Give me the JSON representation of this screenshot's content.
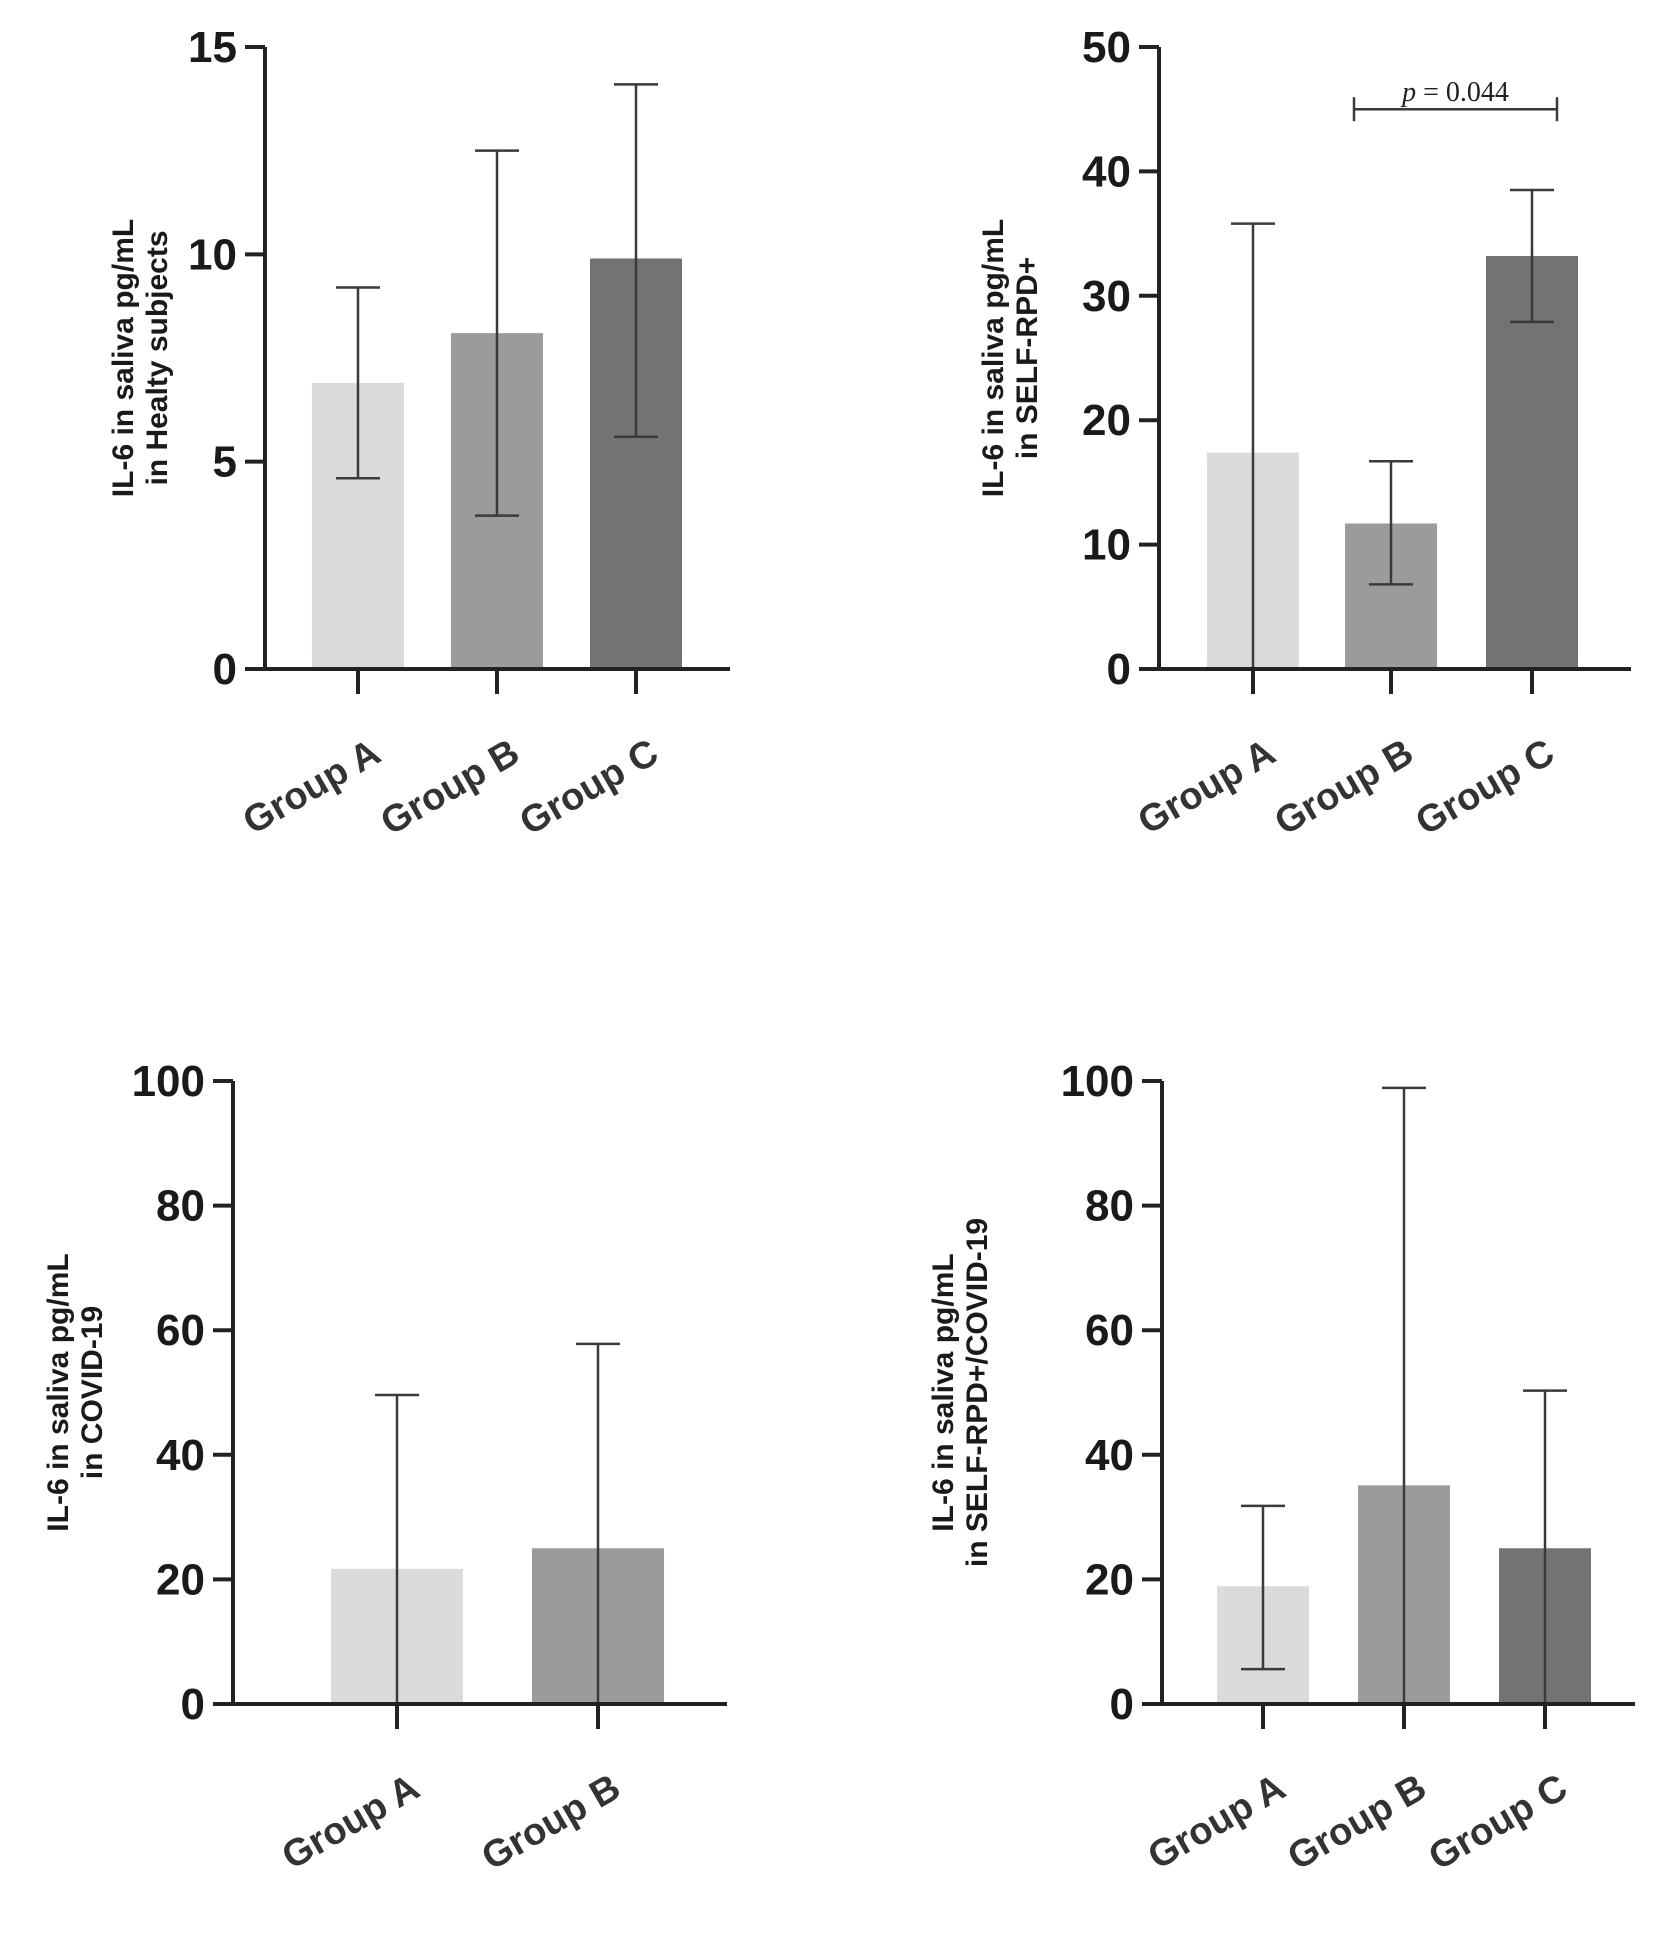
{
  "colors": {
    "group_a": "#d9dcd9",
    "group_b": "#9a9c9a",
    "group_c": "#727472",
    "axis": "#222222"
  },
  "chart_data": [
    {
      "type": "bar",
      "ylabel_lines": [
        "IL-6 in saliva pg/mL",
        "in Healty subjects"
      ],
      "categories": [
        "Group A",
        "Group B",
        "Group C"
      ],
      "values": [
        6.9,
        8.1,
        9.9
      ],
      "error_low": [
        4.6,
        3.7,
        5.6
      ],
      "error_high": [
        9.2,
        12.5,
        14.1
      ],
      "ylim": [
        0,
        15
      ],
      "yticks": [
        0,
        5,
        10,
        15
      ],
      "ytick_labels": [
        "0",
        "5",
        "10",
        "15"
      ]
    },
    {
      "type": "bar",
      "ylabel_lines": [
        "IL-6 in saliva pg/mL",
        "in SELF-RPD+"
      ],
      "categories": [
        "Group A",
        "Group B",
        "Group C"
      ],
      "values": [
        17.4,
        11.7,
        33.2
      ],
      "error_low": [
        0,
        6.8,
        27.9
      ],
      "error_high": [
        35.8,
        16.7,
        38.5
      ],
      "ylim": [
        0,
        50
      ],
      "yticks": [
        0,
        10,
        20,
        30,
        40,
        50
      ],
      "ytick_labels": [
        "0",
        "10",
        "20",
        "30",
        "40",
        "50"
      ],
      "significance": {
        "p_symbol": "p",
        "p_rest": " = 0.044",
        "from": "Group B",
        "to": "Group C",
        "y": 45
      }
    },
    {
      "type": "bar",
      "ylabel_lines": [
        "IL-6 in saliva pg/mL",
        "in COVID-19"
      ],
      "categories": [
        "Group A",
        "Group B"
      ],
      "values": [
        21.7,
        25.0
      ],
      "error_low": [
        0,
        0
      ],
      "error_high": [
        49.6,
        57.8
      ],
      "ylim": [
        0,
        100
      ],
      "yticks": [
        0,
        20,
        40,
        60,
        80,
        100
      ],
      "ytick_labels": [
        "0",
        "20",
        "40",
        "60",
        "80",
        "100"
      ]
    },
    {
      "type": "bar",
      "ylabel_lines": [
        "IL-6 in saliva pg/mL",
        "in SELF-RPD+/COVID-19"
      ],
      "categories": [
        "Group A",
        "Group B",
        "Group C"
      ],
      "values": [
        18.9,
        35.1,
        25.0
      ],
      "error_low": [
        5.6,
        0,
        0
      ],
      "error_high": [
        31.8,
        98.9,
        50.3
      ],
      "ylim": [
        0,
        100
      ],
      "yticks": [
        0,
        20,
        40,
        60,
        80,
        100
      ],
      "ytick_labels": [
        "0",
        "20",
        "40",
        "60",
        "80",
        "100"
      ]
    }
  ]
}
